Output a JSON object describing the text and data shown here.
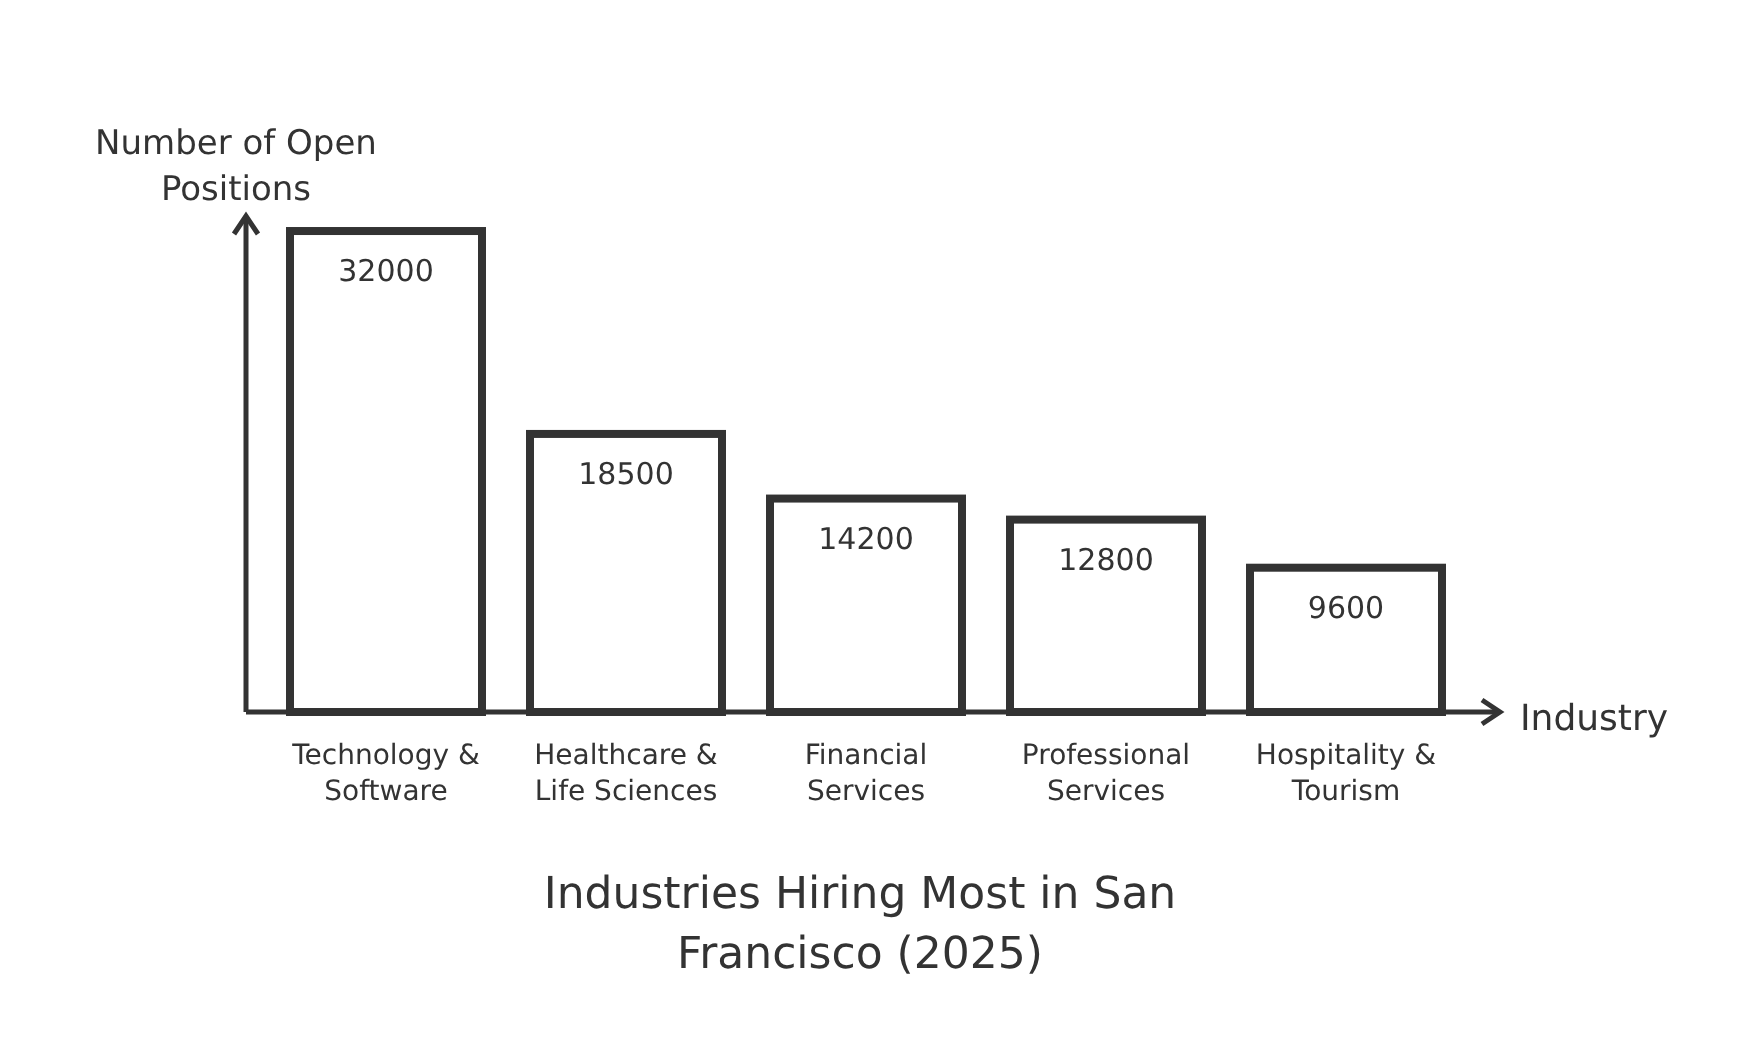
{
  "chart_data": {
    "type": "bar",
    "title": "Industries Hiring Most in San Francisco (2025)",
    "xlabel": "Industry",
    "ylabel": "Number of Open Positions",
    "categories": [
      "Technology & Software",
      "Healthcare & Life Sciences",
      "Financial Services",
      "Professional Services",
      "Hospitality & Tourism"
    ],
    "values": [
      32000,
      18500,
      14200,
      12800,
      9600
    ],
    "color": "#ffffff",
    "ylim": [
      0,
      33000
    ],
    "data_labels": true
  }
}
